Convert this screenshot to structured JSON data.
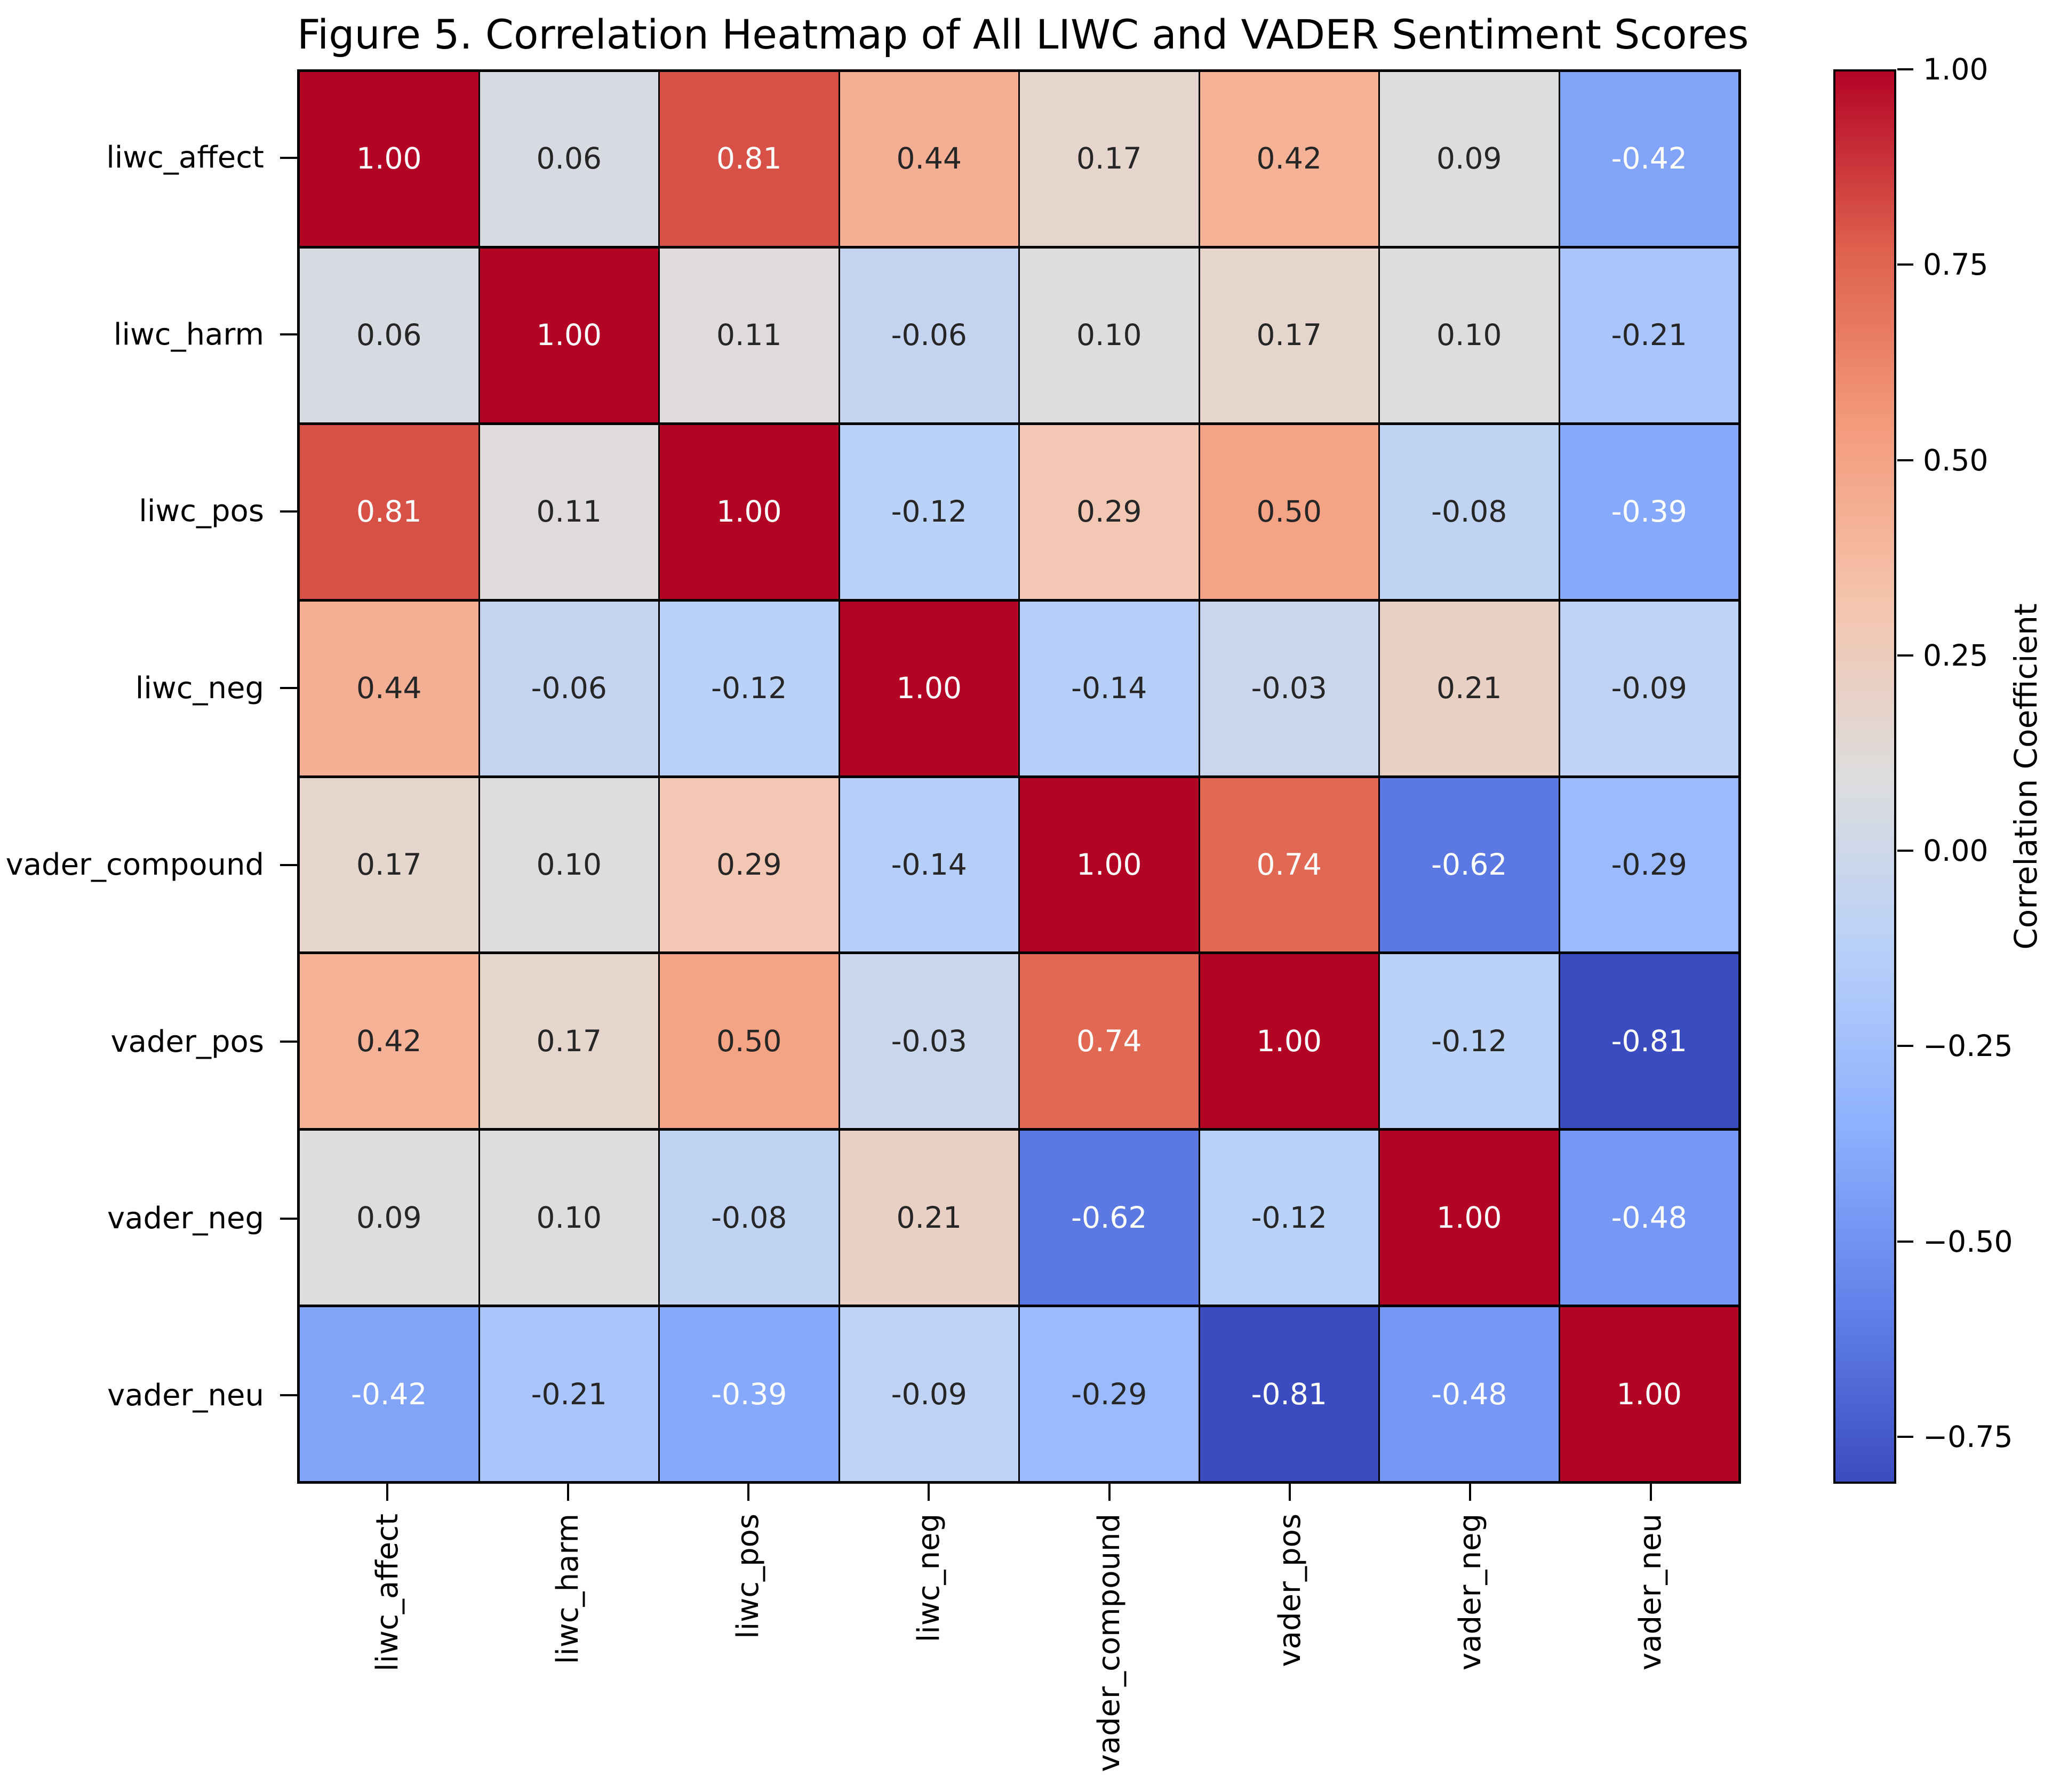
{
  "chart_data": {
    "type": "heatmap",
    "title": "Figure 5. Correlation Heatmap of All LIWC and VADER Sentiment Scores",
    "x_labels": [
      "liwc_affect",
      "liwc_harm",
      "liwc_pos",
      "liwc_neg",
      "vader_compound",
      "vader_pos",
      "vader_neg",
      "vader_neu"
    ],
    "y_labels": [
      "liwc_affect",
      "liwc_harm",
      "liwc_pos",
      "liwc_neg",
      "vader_compound",
      "vader_pos",
      "vader_neg",
      "vader_neu"
    ],
    "matrix": [
      [
        1.0,
        0.06,
        0.81,
        0.44,
        0.17,
        0.42,
        0.09,
        -0.42
      ],
      [
        0.06,
        1.0,
        0.11,
        -0.06,
        0.1,
        0.17,
        0.1,
        -0.21
      ],
      [
        0.81,
        0.11,
        1.0,
        -0.12,
        0.29,
        0.5,
        -0.08,
        -0.39
      ],
      [
        0.44,
        -0.06,
        -0.12,
        1.0,
        -0.14,
        -0.03,
        0.21,
        -0.09
      ],
      [
        0.17,
        0.1,
        0.29,
        -0.14,
        1.0,
        0.74,
        -0.62,
        -0.29
      ],
      [
        0.42,
        0.17,
        0.5,
        -0.03,
        0.74,
        1.0,
        -0.12,
        -0.81
      ],
      [
        0.09,
        0.1,
        -0.08,
        0.21,
        -0.62,
        -0.12,
        1.0,
        -0.48
      ],
      [
        -0.42,
        -0.21,
        -0.39,
        -0.09,
        -0.29,
        -0.81,
        -0.48,
        1.0
      ]
    ],
    "vmin": -0.81,
    "vmax": 1.0,
    "value_decimals": 2,
    "colormap": {
      "name": "coolwarm",
      "stops": [
        "#3b4cc0",
        "#6282ea",
        "#8db0fe",
        "#b8d0f9",
        "#dddddd",
        "#f5c4ad",
        "#f49a7b",
        "#de604d",
        "#b40426"
      ]
    },
    "annotation": {
      "dark_text": "#262626",
      "light_text": "#ffffff",
      "luminance_threshold": 0.408
    },
    "colorbar": {
      "label": "Correlation Coefficient",
      "ticks": [
        {
          "value": 1.0,
          "label": "1.00"
        },
        {
          "value": 0.75,
          "label": "0.75"
        },
        {
          "value": 0.5,
          "label": "0.50"
        },
        {
          "value": 0.25,
          "label": "0.25"
        },
        {
          "value": 0.0,
          "label": "0.00"
        },
        {
          "value": -0.25,
          "label": "−0.25"
        },
        {
          "value": -0.5,
          "label": "−0.50"
        },
        {
          "value": -0.75,
          "label": "−0.75"
        }
      ]
    },
    "layout": {
      "legend_position": "right",
      "grid": false,
      "line_color": "#000000",
      "background": "#ffffff"
    }
  }
}
